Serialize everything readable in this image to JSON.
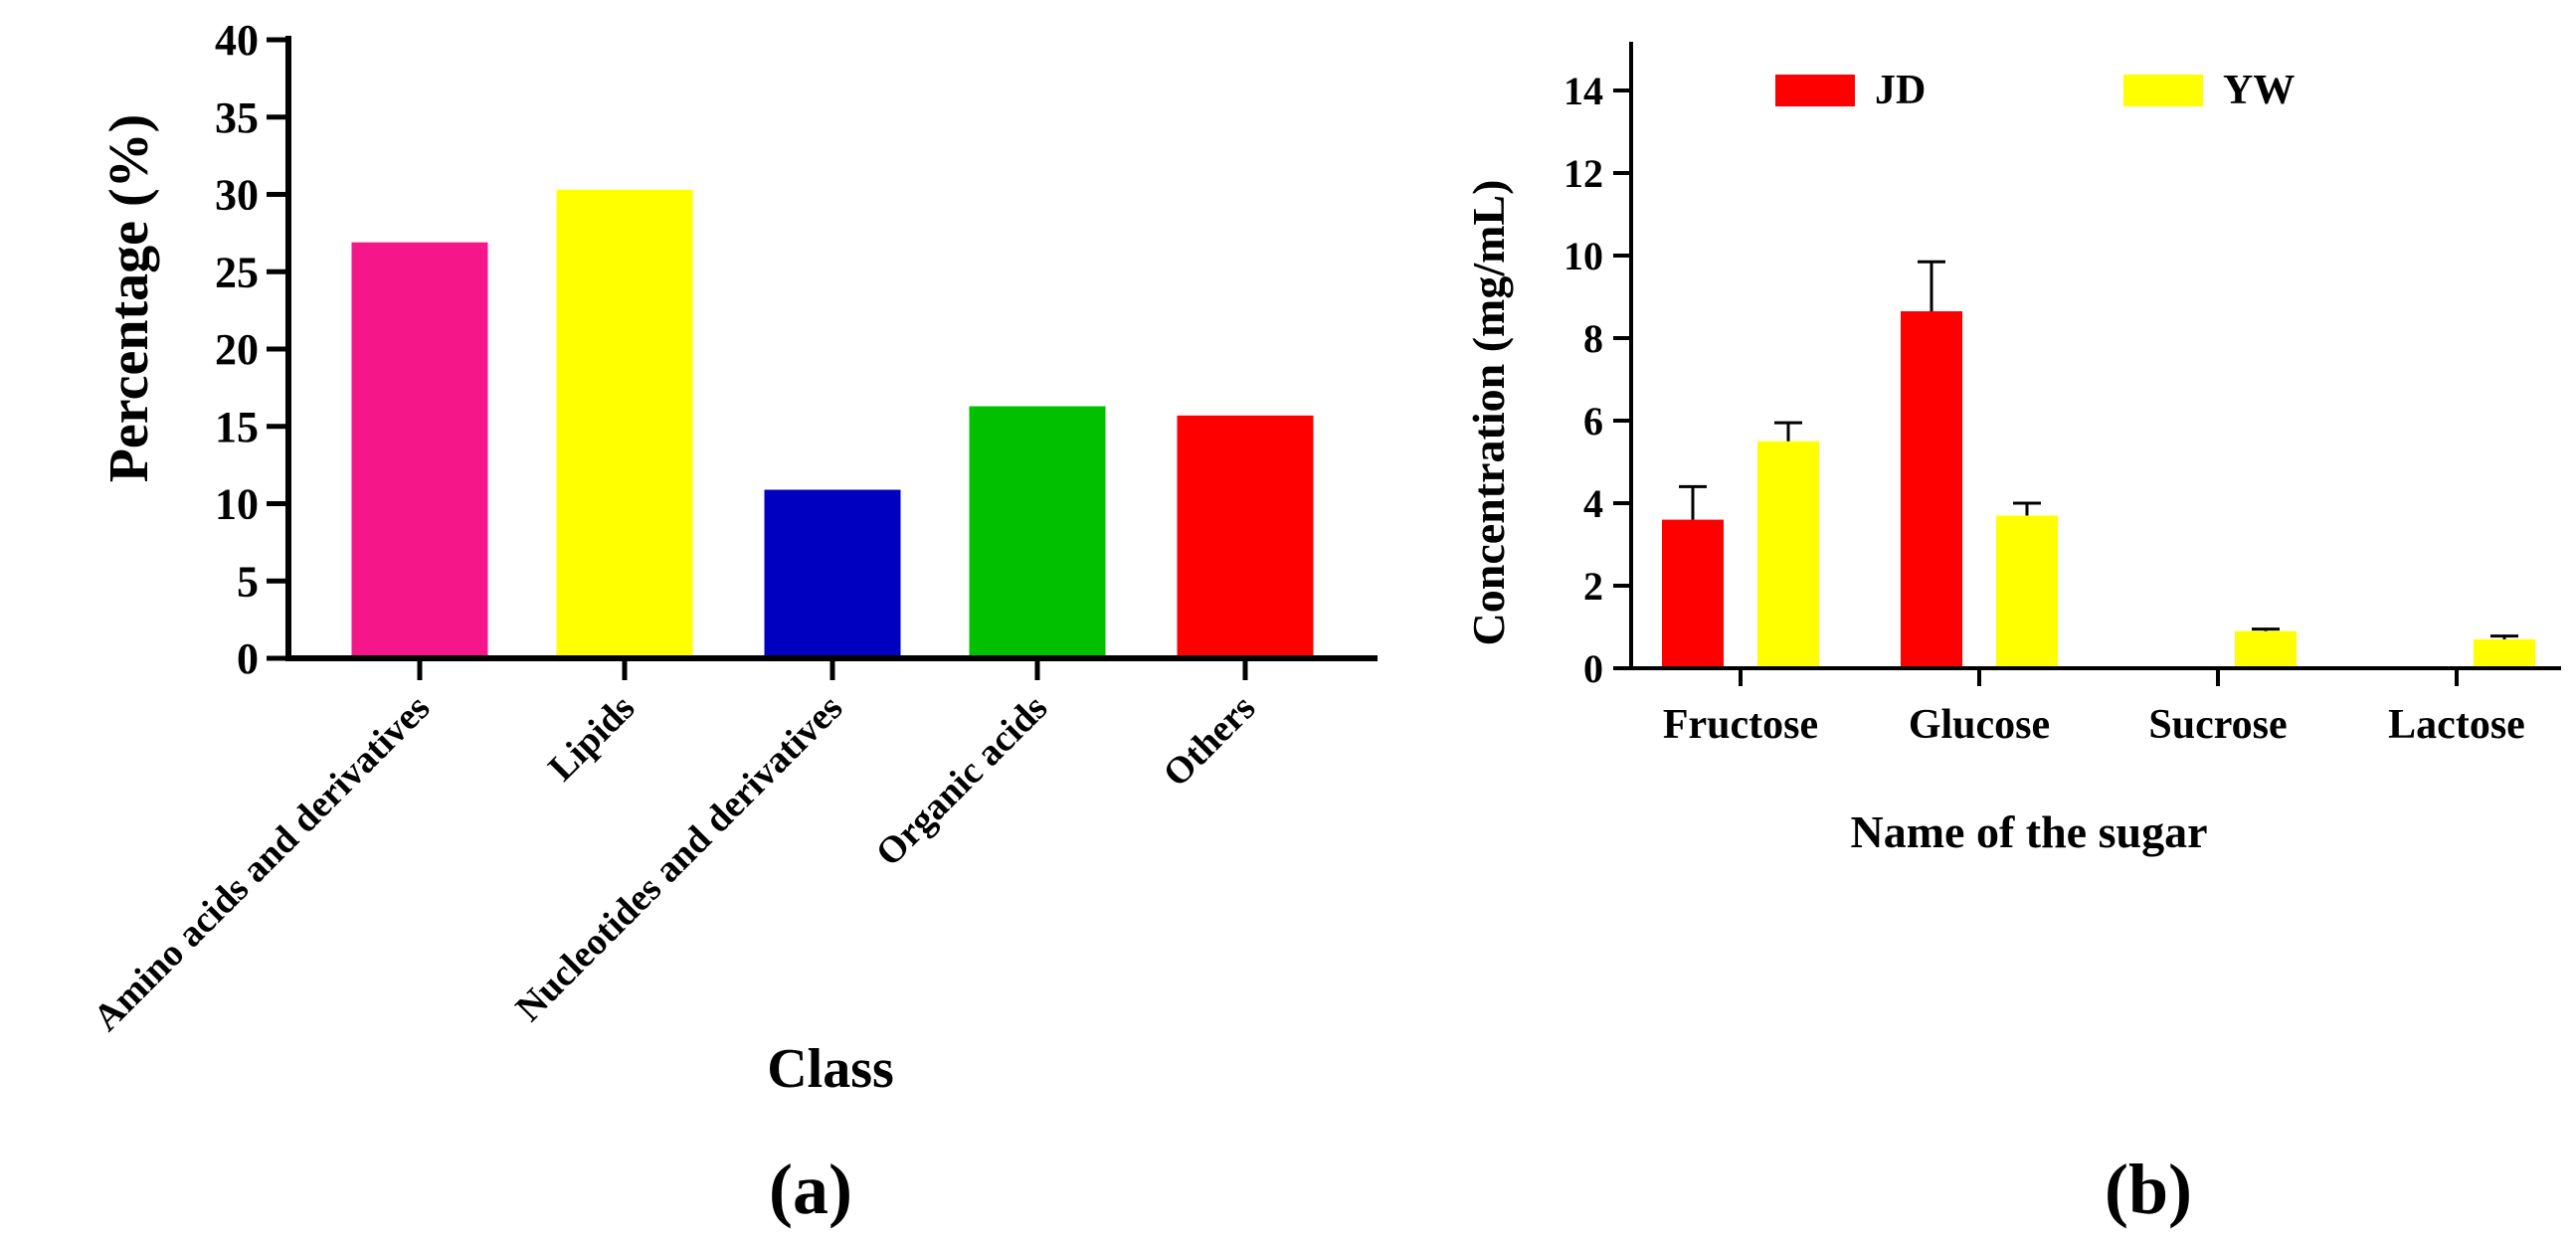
{
  "charts": [
    {
      "type": "bar",
      "panel_label": "(a)",
      "title": "",
      "xlabel": "Class",
      "ylabel": "Percentage (%)",
      "ylim": [
        0,
        40
      ],
      "yticks": [
        0,
        5,
        10,
        15,
        20,
        25,
        30,
        35,
        40
      ],
      "categories": [
        "Amino acids and derivatives",
        "Lipids",
        "Nucleotides and derivatives",
        "Organic acids",
        "Others"
      ],
      "values": [
        26.9,
        30.3,
        10.9,
        16.3,
        15.7
      ],
      "colors": [
        "#f5168a",
        "#ffff00",
        "#0000c0",
        "#00c000",
        "#ff0000"
      ]
    },
    {
      "type": "bar",
      "panel_label": "(b)",
      "title": "",
      "xlabel": "Name of the sugar",
      "ylabel": "Concentration (mg/mL)",
      "ylim": [
        0,
        15
      ],
      "yticks": [
        0,
        2,
        4,
        6,
        8,
        10,
        12,
        14
      ],
      "categories": [
        "Fructose",
        "Glucose",
        "Sucrose",
        "Lactose"
      ],
      "legend_position": "top",
      "series": [
        {
          "name": "JD",
          "color": "#ff0000",
          "values": [
            3.6,
            8.65,
            0,
            0
          ],
          "errors": [
            0.8,
            1.2,
            0,
            0
          ]
        },
        {
          "name": "YW",
          "color": "#ffff00",
          "values": [
            5.5,
            3.7,
            0.9,
            0.7
          ],
          "errors": [
            0.45,
            0.3,
            0.05,
            0.08
          ]
        }
      ]
    }
  ]
}
